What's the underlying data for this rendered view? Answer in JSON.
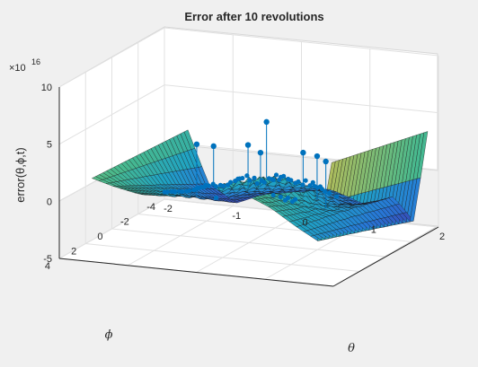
{
  "chart_data": {
    "type": "surface",
    "title": "Error after 10 revolutions",
    "xlabel": "θ",
    "ylabel": "ϕ",
    "zlabel": "error(θ,ϕ,t)",
    "exponent_label": "×10",
    "exponent_power": "16",
    "x_ticks": [
      "-2",
      "-1",
      "0",
      "1",
      "2"
    ],
    "x_tick_values": [
      -2,
      -1,
      0,
      1,
      2
    ],
    "y_ticks": [
      "-4",
      "-2",
      "0",
      "2",
      "4"
    ],
    "y_tick_values": [
      -4,
      -2,
      0,
      2,
      4
    ],
    "z_ticks": [
      "-5",
      "0",
      "5",
      "10"
    ],
    "z_tick_values": [
      -5,
      0,
      5,
      10
    ],
    "xlim": [
      -2,
      2
    ],
    "ylim": [
      -4,
      4
    ],
    "zlim": [
      -5,
      10
    ],
    "z_scale": 1e+16,
    "colormap": "parula",
    "marker_color": "#0072bd",
    "grid": true,
    "surface_profile": {
      "x": [
        -1.6,
        -1.3,
        -0.9,
        -0.5,
        0,
        0.5,
        1.0,
        1.4,
        1.7,
        1.9
      ],
      "z_at_phi_max": [
        2.0,
        1.5,
        1.0,
        1.2,
        1.8,
        2.2,
        1.0,
        -0.5,
        -1.5,
        5.5
      ],
      "z_at_phi_min": [
        1.5,
        -3.0,
        -4.5,
        -3.5,
        -3.0,
        -2.5,
        -3.5,
        -2.5,
        -4.5,
        3.5
      ]
    },
    "peak_markers": [
      {
        "x": 0.2,
        "y": -0.3,
        "z": 5.5
      },
      {
        "x": -0.4,
        "y": 0.6,
        "z": 3.6
      },
      {
        "x": 0.4,
        "y": 1.2,
        "z": 3.9
      },
      {
        "x": -0.8,
        "y": -0.2,
        "z": 3.0
      },
      {
        "x": 0.9,
        "y": -0.5,
        "z": 2.8
      },
      {
        "x": 1.2,
        "y": 0.4,
        "z": 3.1
      },
      {
        "x": -0.3,
        "y": -1.5,
        "z": 2.4
      },
      {
        "x": 0.6,
        "y": -1.0,
        "z": 2.6
      }
    ]
  }
}
